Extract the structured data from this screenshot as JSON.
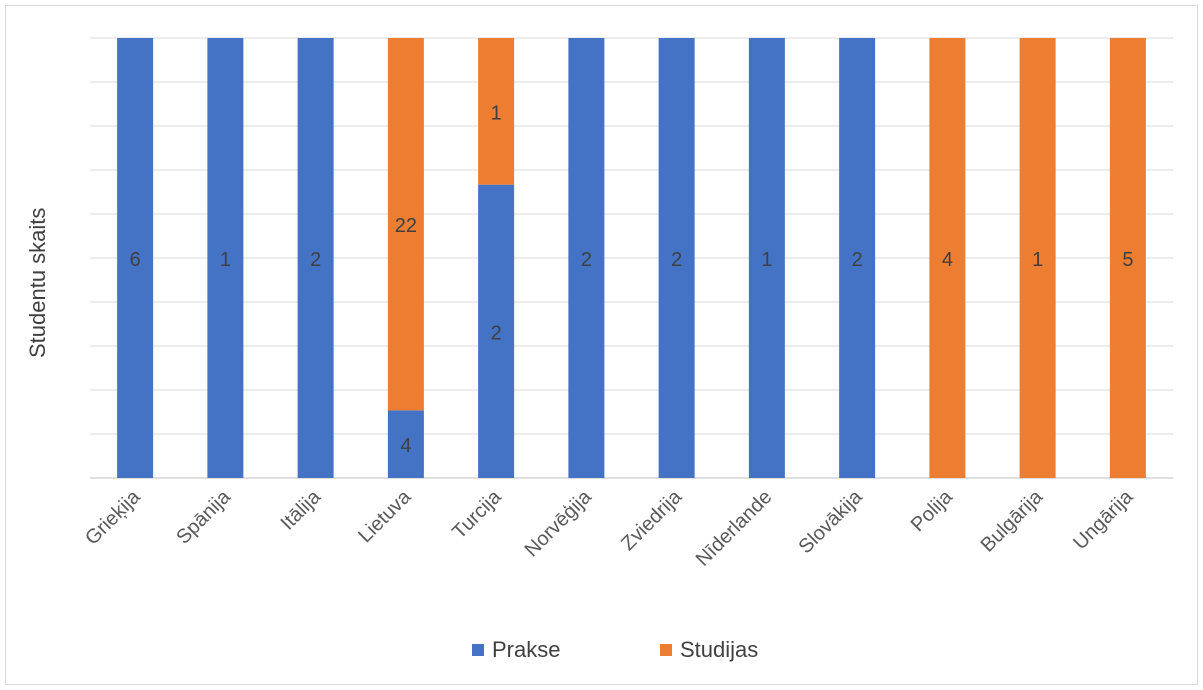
{
  "chart_data": {
    "type": "bar",
    "stacked": true,
    "percent": true,
    "ylabel": "Studentu skaits",
    "categories": [
      "Grieķija",
      "Spānija",
      "Itālija",
      "Lietuva",
      "Turcija",
      "Norvēģija",
      "Zviedrija",
      "Nīderlande",
      "Slovākija",
      "Polija",
      "Bulgārija",
      "Ungārija"
    ],
    "series": [
      {
        "name": "Prakse",
        "color": "#4472c4",
        "values": [
          6,
          1,
          2,
          4,
          2,
          2,
          2,
          1,
          2,
          0,
          0,
          0
        ]
      },
      {
        "name": "Studijas",
        "color": "#ed7d31",
        "values": [
          0,
          0,
          0,
          22,
          1,
          0,
          0,
          0,
          0,
          4,
          1,
          5
        ]
      }
    ],
    "grid": true,
    "legend_position": "bottom",
    "y_tick_labels_shown": false
  }
}
